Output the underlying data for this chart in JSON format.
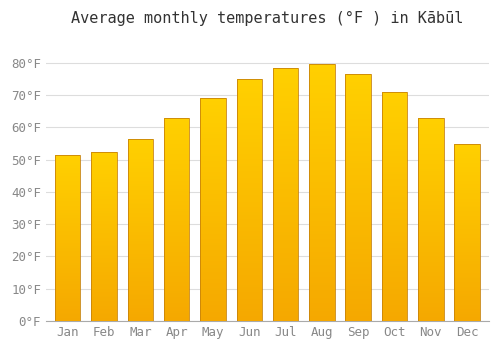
{
  "title": "Average monthly temperatures (°F ) in Kābūl",
  "months": [
    "Jan",
    "Feb",
    "Mar",
    "Apr",
    "May",
    "Jun",
    "Jul",
    "Aug",
    "Sep",
    "Oct",
    "Nov",
    "Dec"
  ],
  "values": [
    51.5,
    52.5,
    56.5,
    63.0,
    69.0,
    75.0,
    78.5,
    79.5,
    76.5,
    71.0,
    63.0,
    55.0
  ],
  "bar_color_bottom": "#F5A800",
  "bar_color_top": "#FFD000",
  "bar_edge_color": "#C8830A",
  "background_color": "#FFFFFF",
  "grid_color": "#DDDDDD",
  "ylim": [
    0,
    88
  ],
  "yticks": [
    0,
    10,
    20,
    30,
    40,
    50,
    60,
    70,
    80
  ],
  "ytick_labels": [
    "0°F",
    "10°F",
    "20°F",
    "30°F",
    "40°F",
    "50°F",
    "60°F",
    "70°F",
    "80°F"
  ],
  "title_fontsize": 11,
  "tick_fontsize": 9,
  "bar_width": 0.7
}
